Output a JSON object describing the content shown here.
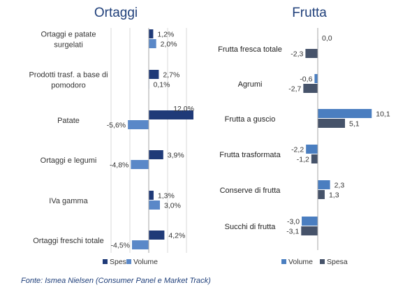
{
  "source": "Fonte: Ismea Nielsen (Consumer Panel e Market Track)",
  "colors": {
    "spesa_left": "#1f3a78",
    "volume_left": "#5a88c8",
    "volume_right": "#4a7ec0",
    "spesa_right": "#46536a",
    "title": "#1f3f7a",
    "axis": "#a6a6a6",
    "grid": "#d9d9d9"
  },
  "chart_data": [
    {
      "type": "bar",
      "orientation": "horizontal",
      "title": "Ortaggi",
      "categories": [
        "Ortaggi e patate surgelati",
        "Prodotti trasf. a base di pomodoro",
        "Patate",
        "Ortaggi e legumi",
        "IVa gamma",
        "Ortaggi freschi totale"
      ],
      "series": [
        {
          "name": "Spesa",
          "values": [
            1.2,
            2.7,
            12.0,
            3.9,
            1.3,
            4.2
          ],
          "labels": [
            "1,2%",
            "2,7%",
            "12,0%",
            "3,9%",
            "1,3%",
            "4,2%"
          ]
        },
        {
          "name": "Volume",
          "values": [
            2.0,
            0.1,
            -5.6,
            -4.8,
            3.0,
            -4.5
          ],
          "labels": [
            "2,0%",
            "0,1%",
            "-5,6%",
            "-4,8%",
            "3,0%",
            "-4,5%"
          ]
        }
      ],
      "legend": [
        "Spesa",
        "Volume"
      ],
      "legend_position": "bottom",
      "grid": true
    },
    {
      "type": "bar",
      "orientation": "horizontal",
      "title": "Frutta",
      "categories": [
        "Frutta fresca totale",
        "Agrumi",
        "Frutta a guscio",
        "Frutta trasformata",
        "Conserve di frutta",
        "Succhi di frutta"
      ],
      "series": [
        {
          "name": "Volume",
          "values": [
            0.0,
            -0.6,
            10.1,
            -2.2,
            2.3,
            -3.0
          ],
          "labels": [
            "0,0",
            "-0,6",
            "10,1",
            "-2,2",
            "2,3",
            "-3,0"
          ]
        },
        {
          "name": "Spesa",
          "values": [
            -2.3,
            -2.7,
            5.1,
            -1.2,
            1.3,
            -3.1
          ],
          "labels": [
            "-2,3",
            "-2,7",
            "5,1",
            "-1,2",
            "1,3",
            "-3,1"
          ]
        }
      ],
      "legend": [
        "Volume",
        "Spesa"
      ],
      "legend_position": "bottom",
      "grid": true
    }
  ]
}
